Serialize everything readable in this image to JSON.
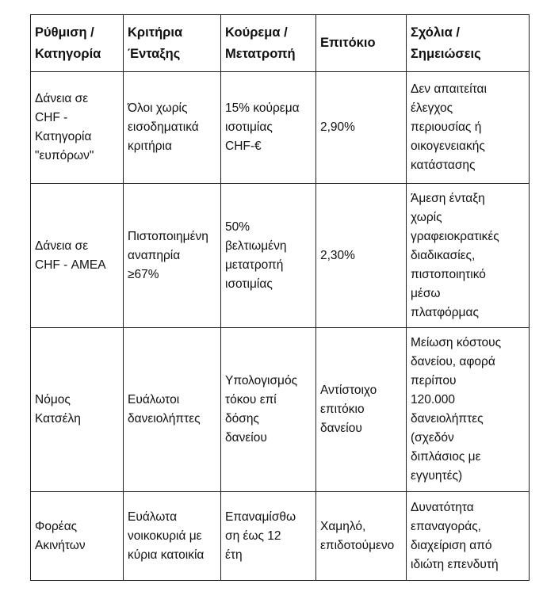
{
  "table": {
    "headers": [
      "Ρύθμιση /\nΚατηγορία",
      "Κριτήρια\nΈνταξης",
      "Κούρεμα /\nΜετατροπή",
      "Επιτόκιο",
      "Σχόλια /\nΣημειώσεις"
    ],
    "rows": [
      [
        "Δάνεια σε\nCHF -\nΚατηγορία\n\"ευπόρων\"",
        "Όλοι χωρίς\nεισοδηματικά\nκριτήρια",
        "15% κούρεμα\nισοτιμίας\nCHF-€",
        "2,90%",
        "Δεν απαιτείται\nέλεγχος\nπεριουσίας ή\nοικογενειακής\nκατάστασης"
      ],
      [
        "Δάνεια σε\nCHF - ΑΜΕΑ",
        "Πιστοποιημένη\nαναπηρία\n≥67%",
        "50%\nβελτιωμένη\nμετατροπή\nισοτιμίας",
        "2,30%",
        "Άμεση ένταξη\nχωρίς\nγραφειοκρατικές\nδιαδικασίες,\nπιστοποιητικό\nμέσω\nπλατφόρμας"
      ],
      [
        "Νόμος\nΚατσέλη",
        "Ευάλωτοι\nδανειολήπτες",
        "Υπολογισμός\nτόκου επί\nδόσης\nδανείου",
        "Αντίστοιχο\nεπιτόκιο\nδανείου",
        "Μείωση κόστους\nδανείου, αφορά\nπερίπου\n120.000\nδανειολήπτες\n(σχεδόν\nδιπλάσιος με\nεγγυητές)"
      ],
      [
        "Φορέας\nΑκινήτων",
        "Ευάλωτα\nνοικοκυριά με\nκύρια κατοικία",
        "Επαναμίσθω\nση έως 12\nέτη",
        "Χαμηλό,\nεπιδοτούμενο",
        "Δυνατότητα\nεπαναγοράς,\nδιαχείριση από\nιδιώτη επενδυτή"
      ]
    ]
  }
}
